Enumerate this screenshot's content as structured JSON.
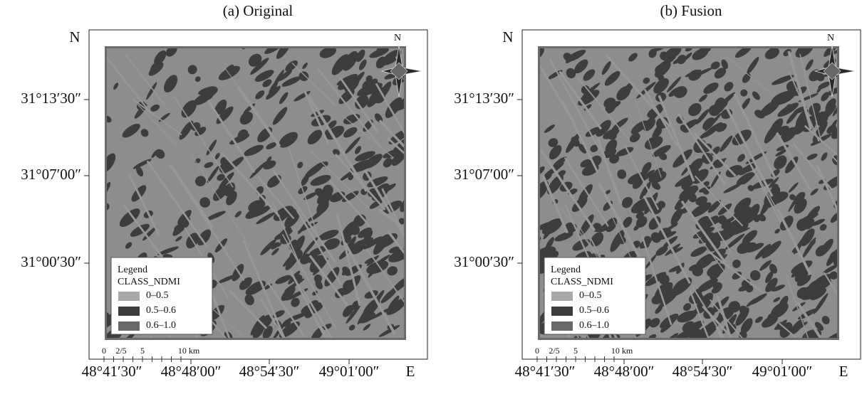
{
  "panels": [
    {
      "title": "(a) Original",
      "north_label": "N",
      "east_label": "E",
      "lat_ticks": [
        "31°13′30″",
        "31°07′00″",
        "31°00′30″"
      ],
      "lon_ticks": [
        "48°41′30″",
        "48°48′00″",
        "48°54′30″",
        "49°01′00″"
      ],
      "compass": "N",
      "legend": {
        "title": "Legend",
        "subtitle": "CLASS_NDMI",
        "items": [
          "0–0.5",
          "0.5–0.6",
          "0.6–1.0"
        ]
      },
      "scale_bar": [
        "0",
        "2/5",
        "5",
        "10 km"
      ]
    },
    {
      "title": "(b) Fusion",
      "north_label": "N",
      "east_label": "E",
      "lat_ticks": [
        "31°13′30″",
        "31°07′00″",
        "31°00′30″"
      ],
      "lon_ticks": [
        "48°41′30″",
        "48°48′00″",
        "48°54′30″",
        "49°01′00″"
      ],
      "compass": "N",
      "legend": {
        "title": "Legend",
        "subtitle": "CLASS_NDMI",
        "items": [
          "0–0.5",
          "0.5–0.6",
          "0.6–1.0"
        ]
      },
      "scale_bar": [
        "0",
        "2/5",
        "5",
        "10 km"
      ]
    }
  ]
}
